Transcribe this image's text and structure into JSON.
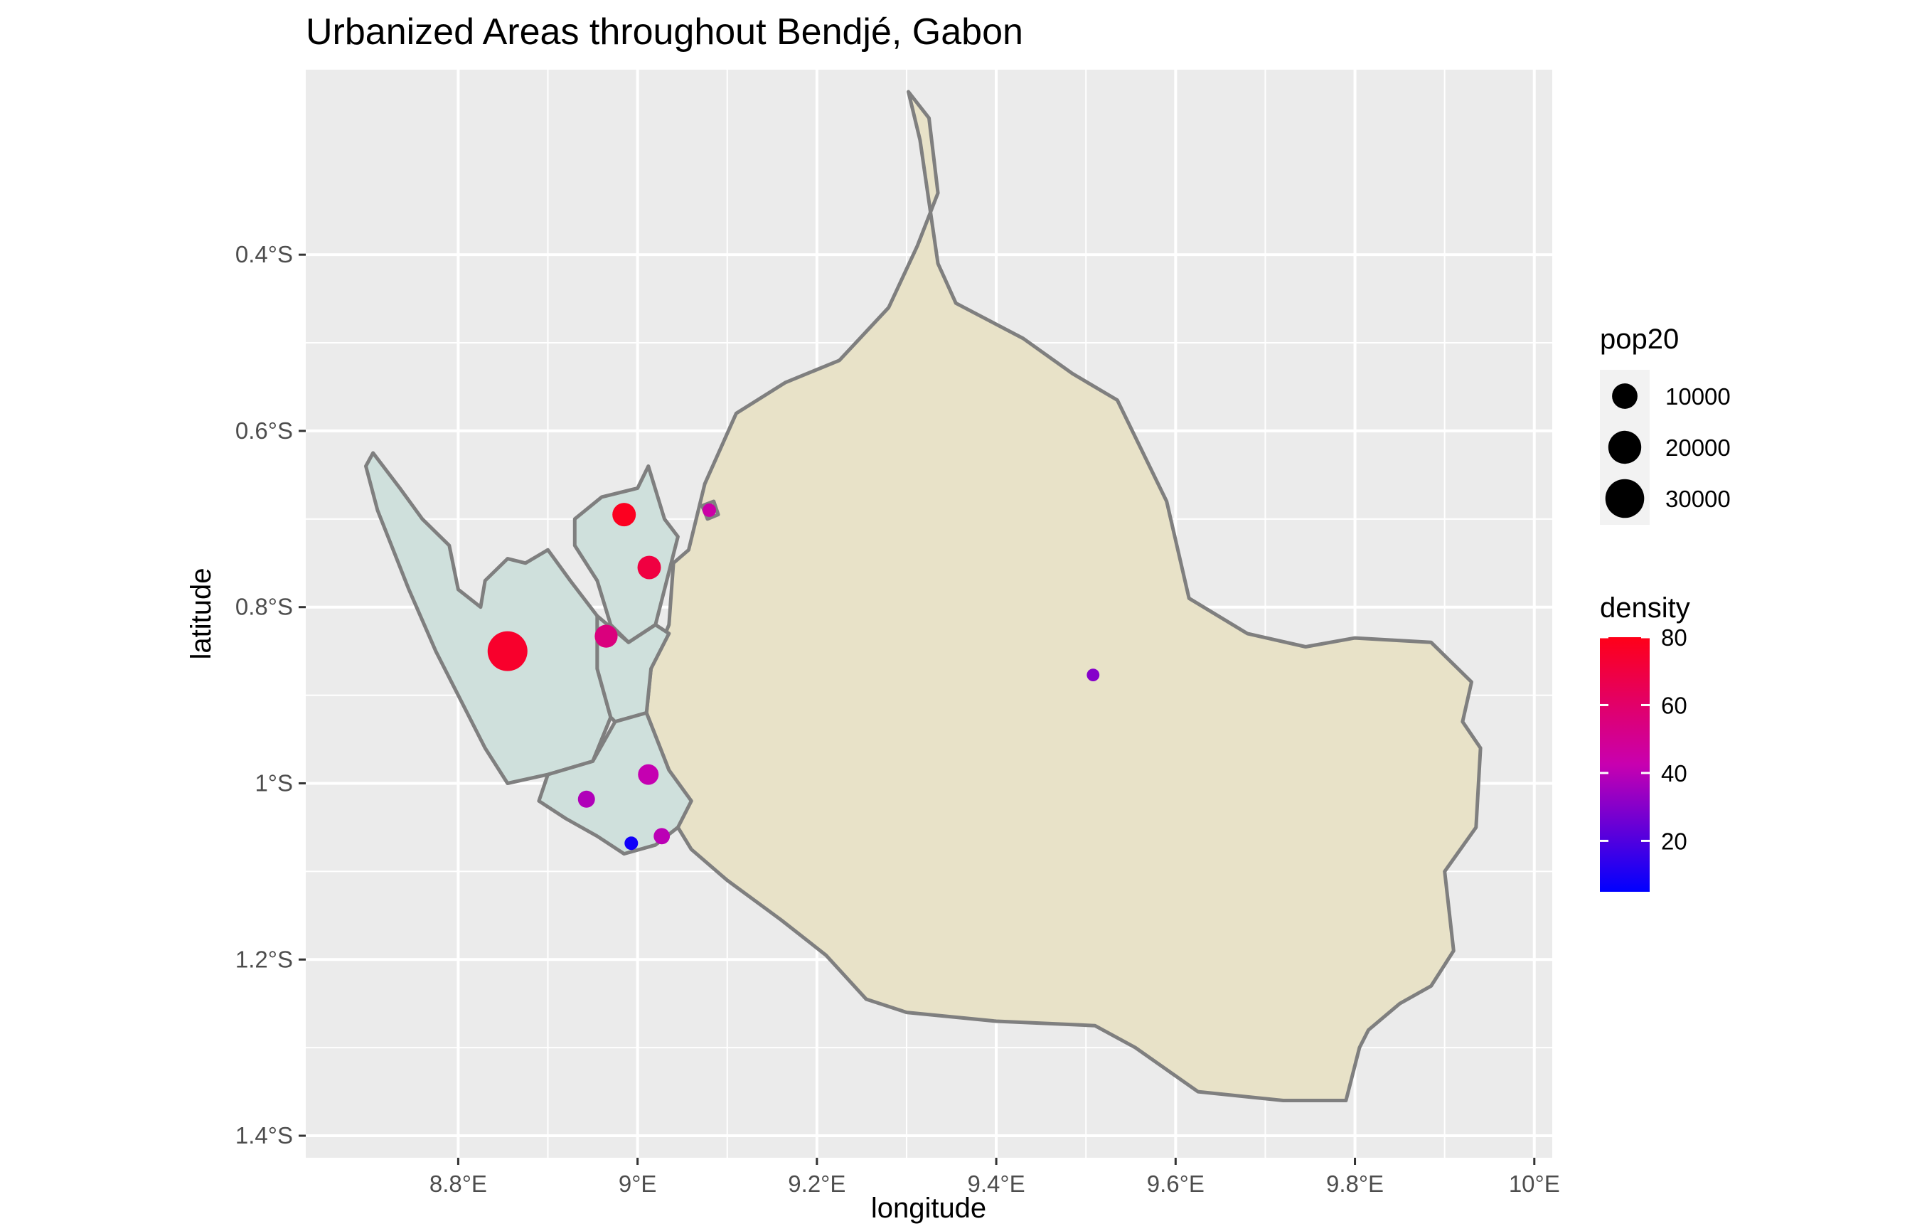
{
  "chart_data": {
    "type": "map",
    "title": "Urbanized Areas throughout Bendjé, Gabon",
    "xlabel": "longitude",
    "ylabel": "latitude",
    "xlim": [
      8.63,
      10.02
    ],
    "ylim": [
      -1.425,
      -0.19
    ],
    "x_ticks": [
      {
        "value": 8.8,
        "label": "8.8°E"
      },
      {
        "value": 9.0,
        "label": "9°E"
      },
      {
        "value": 9.2,
        "label": "9.2°E"
      },
      {
        "value": 9.4,
        "label": "9.4°E"
      },
      {
        "value": 9.6,
        "label": "9.6°E"
      },
      {
        "value": 9.8,
        "label": "9.8°E"
      },
      {
        "value": 10.0,
        "label": "10°E"
      }
    ],
    "y_ticks": [
      {
        "value": -0.4,
        "label": "0.4°S"
      },
      {
        "value": -0.6,
        "label": "0.6°S"
      },
      {
        "value": -0.8,
        "label": "0.8°S"
      },
      {
        "value": -1.0,
        "label": "1°S"
      },
      {
        "value": -1.2,
        "label": "1.2°S"
      },
      {
        "value": -1.4,
        "label": "1.4°S"
      }
    ],
    "grid": true,
    "colors": {
      "panel_bg": "#ebebeb",
      "grid": "#ffffff",
      "region_fill": "#e8e2c8",
      "urban_fill": "#cfe0dc",
      "border": "#7f7f7f",
      "density_low": "#0000ff",
      "density_high": "#ff0000"
    },
    "regions": [
      {
        "name": "region-outline",
        "fill": "#e8e2c8",
        "points": [
          [
            9.302,
            -0.215
          ],
          [
            9.325,
            -0.245
          ],
          [
            9.335,
            -0.33
          ],
          [
            9.312,
            -0.39
          ],
          [
            9.28,
            -0.46
          ],
          [
            9.225,
            -0.52
          ],
          [
            9.165,
            -0.545
          ],
          [
            9.11,
            -0.58
          ],
          [
            9.075,
            -0.66
          ],
          [
            9.057,
            -0.735
          ],
          [
            9.04,
            -0.75
          ],
          [
            9.035,
            -0.82
          ],
          [
            9.015,
            -0.87
          ],
          [
            9.01,
            -0.92
          ],
          [
            9.035,
            -0.985
          ],
          [
            9.045,
            -1.05
          ],
          [
            9.06,
            -1.075
          ],
          [
            9.1,
            -1.11
          ],
          [
            9.16,
            -1.155
          ],
          [
            9.21,
            -1.195
          ],
          [
            9.255,
            -1.245
          ],
          [
            9.3,
            -1.26
          ],
          [
            9.4,
            -1.27
          ],
          [
            9.51,
            -1.275
          ],
          [
            9.555,
            -1.3
          ],
          [
            9.625,
            -1.35
          ],
          [
            9.72,
            -1.36
          ],
          [
            9.79,
            -1.36
          ],
          [
            9.805,
            -1.3
          ],
          [
            9.815,
            -1.28
          ],
          [
            9.85,
            -1.25
          ],
          [
            9.885,
            -1.23
          ],
          [
            9.91,
            -1.19
          ],
          [
            9.9,
            -1.1
          ],
          [
            9.935,
            -1.05
          ],
          [
            9.94,
            -0.96
          ],
          [
            9.92,
            -0.93
          ],
          [
            9.93,
            -0.885
          ],
          [
            9.885,
            -0.84
          ],
          [
            9.8,
            -0.835
          ],
          [
            9.745,
            -0.845
          ],
          [
            9.68,
            -0.83
          ],
          [
            9.615,
            -0.79
          ],
          [
            9.59,
            -0.68
          ],
          [
            9.535,
            -0.565
          ],
          [
            9.485,
            -0.535
          ],
          [
            9.43,
            -0.495
          ],
          [
            9.355,
            -0.455
          ],
          [
            9.335,
            -0.41
          ],
          [
            9.315,
            -0.27
          ],
          [
            9.302,
            -0.215
          ]
        ]
      },
      {
        "name": "urban-area-west",
        "fill": "#cfe0dc",
        "points": [
          [
            8.705,
            -0.625
          ],
          [
            8.735,
            -0.665
          ],
          [
            8.76,
            -0.7
          ],
          [
            8.79,
            -0.73
          ],
          [
            8.8,
            -0.78
          ],
          [
            8.825,
            -0.8
          ],
          [
            8.83,
            -0.77
          ],
          [
            8.855,
            -0.745
          ],
          [
            8.875,
            -0.75
          ],
          [
            8.9,
            -0.735
          ],
          [
            8.925,
            -0.77
          ],
          [
            8.955,
            -0.81
          ],
          [
            8.955,
            -0.87
          ],
          [
            8.97,
            -0.925
          ],
          [
            8.95,
            -0.975
          ],
          [
            8.9,
            -0.99
          ],
          [
            8.855,
            -1.0
          ],
          [
            8.83,
            -0.96
          ],
          [
            8.81,
            -0.92
          ],
          [
            8.775,
            -0.85
          ],
          [
            8.745,
            -0.78
          ],
          [
            8.71,
            -0.69
          ],
          [
            8.697,
            -0.64
          ],
          [
            8.705,
            -0.625
          ]
        ]
      },
      {
        "name": "urban-area-north",
        "fill": "#cfe0dc",
        "points": [
          [
            8.93,
            -0.7
          ],
          [
            8.96,
            -0.675
          ],
          [
            9.0,
            -0.665
          ],
          [
            9.012,
            -0.64
          ],
          [
            9.03,
            -0.7
          ],
          [
            9.045,
            -0.72
          ],
          [
            9.03,
            -0.78
          ],
          [
            9.02,
            -0.82
          ],
          [
            8.99,
            -0.84
          ],
          [
            8.97,
            -0.82
          ],
          [
            8.955,
            -0.77
          ],
          [
            8.93,
            -0.73
          ],
          [
            8.93,
            -0.7
          ]
        ]
      },
      {
        "name": "urban-area-central",
        "fill": "#cfe0dc",
        "points": [
          [
            8.955,
            -0.81
          ],
          [
            8.99,
            -0.84
          ],
          [
            9.02,
            -0.82
          ],
          [
            9.035,
            -0.83
          ],
          [
            9.015,
            -0.87
          ],
          [
            9.01,
            -0.92
          ],
          [
            8.975,
            -0.93
          ],
          [
            8.97,
            -0.925
          ],
          [
            8.955,
            -0.87
          ],
          [
            8.955,
            -0.81
          ]
        ]
      },
      {
        "name": "urban-area-south",
        "fill": "#cfe0dc",
        "points": [
          [
            8.9,
            -0.99
          ],
          [
            8.95,
            -0.975
          ],
          [
            8.975,
            -0.93
          ],
          [
            9.01,
            -0.92
          ],
          [
            9.035,
            -0.985
          ],
          [
            9.06,
            -1.02
          ],
          [
            9.045,
            -1.05
          ],
          [
            9.02,
            -1.07
          ],
          [
            8.985,
            -1.08
          ],
          [
            8.955,
            -1.06
          ],
          [
            8.92,
            -1.04
          ],
          [
            8.89,
            -1.02
          ],
          [
            8.9,
            -0.99
          ]
        ]
      },
      {
        "name": "island-east",
        "fill": "#cfe0dc",
        "points": [
          [
            9.072,
            -0.685
          ],
          [
            9.085,
            -0.68
          ],
          [
            9.09,
            -0.695
          ],
          [
            9.078,
            -0.7
          ],
          [
            9.072,
            -0.685
          ]
        ]
      }
    ],
    "points": [
      {
        "lon": 8.855,
        "lat": -0.85,
        "pop20": 32000,
        "density": 75
      },
      {
        "lon": 8.985,
        "lat": -0.695,
        "pop20": 8000,
        "density": 78
      },
      {
        "lon": 9.013,
        "lat": -0.755,
        "pop20": 8000,
        "density": 70
      },
      {
        "lon": 8.965,
        "lat": -0.833,
        "pop20": 7500,
        "density": 55
      },
      {
        "lon": 9.012,
        "lat": -0.99,
        "pop20": 5500,
        "density": 42
      },
      {
        "lon": 8.943,
        "lat": -1.018,
        "pop20": 3000,
        "density": 38
      },
      {
        "lon": 9.027,
        "lat": -1.06,
        "pop20": 2500,
        "density": 40
      },
      {
        "lon": 8.993,
        "lat": -1.068,
        "pop20": 1200,
        "density": 8
      },
      {
        "lon": 9.08,
        "lat": -0.69,
        "pop20": 1200,
        "density": 45
      },
      {
        "lon": 9.508,
        "lat": -0.877,
        "pop20": 900,
        "density": 30
      }
    ],
    "legend_size": {
      "title": "pop20",
      "entries": [
        {
          "value": 10000,
          "label": "10000"
        },
        {
          "value": 20000,
          "label": "20000"
        },
        {
          "value": 30000,
          "label": "30000"
        }
      ]
    },
    "legend_color": {
      "title": "density",
      "min": 5,
      "max": 80,
      "ticks": [
        {
          "value": 80,
          "label": "80"
        },
        {
          "value": 60,
          "label": "60"
        },
        {
          "value": 40,
          "label": "40"
        },
        {
          "value": 20,
          "label": "20"
        }
      ]
    },
    "legend_placement": "right"
  }
}
